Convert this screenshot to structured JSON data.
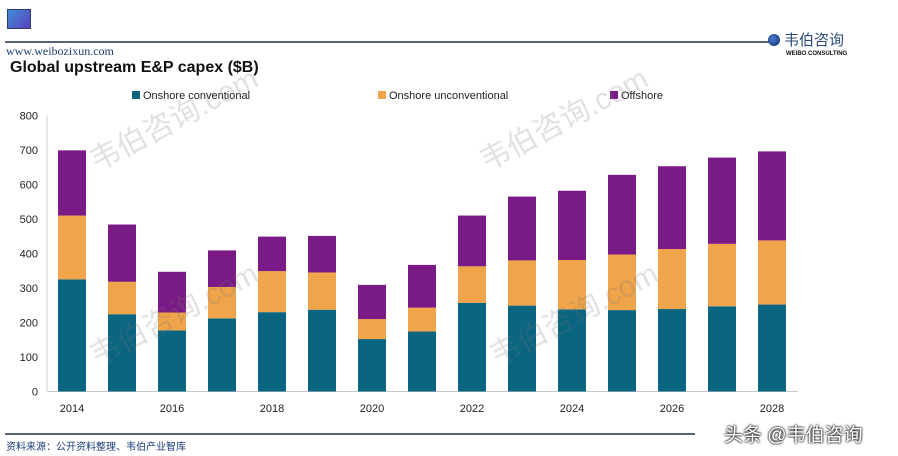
{
  "header": {
    "site": "www.weibozixun.com",
    "brand_cn": "韦伯咨询",
    "brand_en": "WEIBO CONSULTING"
  },
  "footer": {
    "source": "资料来源：公开资料整理、韦伯产业智库",
    "overlay": "头条 @韦伯咨询"
  },
  "watermark": "韦伯咨询.com",
  "colors": {
    "Onshore conventional": "#0a6580",
    "Onshore unconventional": "#f0a54a",
    "Offshore": "#7a1a86"
  },
  "chart_data": {
    "type": "bar",
    "stacked": true,
    "title": "Global upstream E&P capex ($B)",
    "xlabel": "",
    "ylabel": "",
    "ylim": [
      0,
      800
    ],
    "yticks": [
      0,
      100,
      200,
      300,
      400,
      500,
      600,
      700,
      800
    ],
    "grid": false,
    "legend": "top",
    "categories": [
      "2014",
      "2015",
      "2016",
      "2017",
      "2018",
      "2019",
      "2020",
      "2021",
      "2022",
      "2023",
      "2024",
      "2025",
      "2026",
      "2027",
      "2028"
    ],
    "xtick_labels": [
      "2014",
      "",
      "2016",
      "",
      "2018",
      "",
      "2020",
      "",
      "2022",
      "",
      "2024",
      "",
      "2026",
      "",
      "2028"
    ],
    "series": [
      {
        "name": "Onshore conventional",
        "values": [
          325,
          224,
          177,
          212,
          230,
          237,
          152,
          174,
          257,
          249,
          238,
          236,
          239,
          247,
          252
        ]
      },
      {
        "name": "Onshore unconventional",
        "values": [
          185,
          94,
          52,
          91,
          119,
          108,
          58,
          69,
          106,
          131,
          143,
          161,
          174,
          181,
          186
        ]
      },
      {
        "name": "Offshore",
        "values": [
          189,
          166,
          118,
          106,
          100,
          106,
          99,
          124,
          147,
          185,
          201,
          231,
          240,
          250,
          258
        ]
      }
    ]
  }
}
